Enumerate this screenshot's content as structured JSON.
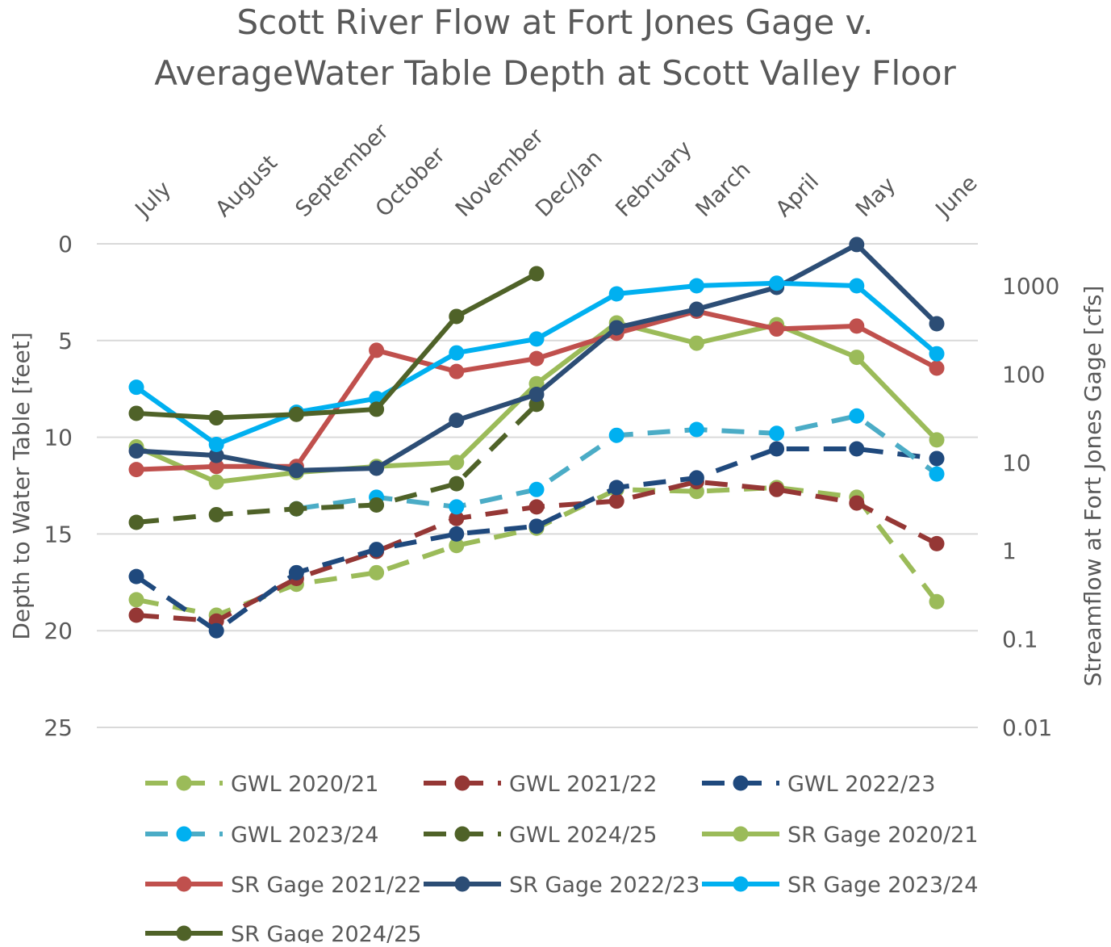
{
  "chart_data": {
    "type": "line",
    "title_lines": [
      "Scott River Flow at Fort Jones Gage v.",
      "AverageWater Table Depth at Scott Valley Floor"
    ],
    "categories": [
      "July",
      "August",
      "September",
      "October",
      "November",
      "Dec/Jan",
      "February",
      "March",
      "April",
      "May",
      "June"
    ],
    "ylabel": "Depth to Water Table [feet]",
    "y2label": "Streamflow at Fort Jones Gage [cfs]",
    "ylim": [
      0,
      25
    ],
    "yticks": [
      "0",
      "5",
      "10",
      "15",
      "20",
      "25"
    ],
    "y2lim": [
      0.01,
      3000
    ],
    "y2scale": "log",
    "y2ticks": [
      "1000",
      "100",
      "10",
      "1",
      "0.1",
      "0.01"
    ],
    "grid": true,
    "legend_position": "bottom",
    "series": [
      {
        "name": "GWL 2020/21",
        "axis": "left",
        "dashed": true,
        "color": "#9BBB59",
        "marker": "#9BBB59",
        "values": [
          18.4,
          19.2,
          17.6,
          17.0,
          15.6,
          14.7,
          12.7,
          12.8,
          12.6,
          13.1,
          18.5
        ]
      },
      {
        "name": "GWL 2021/22",
        "axis": "left",
        "dashed": true,
        "color": "#953735",
        "marker": "#953735",
        "values": [
          19.2,
          19.5,
          17.3,
          15.9,
          14.2,
          13.6,
          13.3,
          12.3,
          12.7,
          13.4,
          15.5
        ]
      },
      {
        "name": "GWL 2022/23",
        "axis": "left",
        "dashed": true,
        "color": "#1F497D",
        "marker": "#1F497D",
        "values": [
          17.2,
          20.0,
          17.0,
          15.8,
          15.0,
          14.6,
          12.6,
          12.1,
          10.6,
          10.6,
          11.1
        ]
      },
      {
        "name": "GWL 2023/24",
        "axis": "left",
        "dashed": true,
        "color": "#4BACC6",
        "marker": "#00B0F0",
        "values": [
          null,
          null,
          13.7,
          13.1,
          13.6,
          12.7,
          9.9,
          9.6,
          9.8,
          8.9,
          11.9
        ]
      },
      {
        "name": "GWL 2024/25",
        "axis": "left",
        "dashed": true,
        "color": "#4F6228",
        "marker": "#4F6228",
        "values": [
          14.4,
          14.0,
          13.7,
          13.5,
          12.4,
          8.3,
          null,
          null,
          null,
          null,
          null
        ]
      },
      {
        "name": "SR Gage 2020/21",
        "axis": "right",
        "dashed": false,
        "color": "#9BBB59",
        "marker": "#9BBB59",
        "values": [
          15,
          6,
          7.7,
          9,
          10,
          78,
          380,
          224,
          363,
          155,
          18
        ]
      },
      {
        "name": "SR Gage 2021/22",
        "axis": "right",
        "dashed": false,
        "color": "#C0504D",
        "marker": "#C0504D",
        "values": [
          8.3,
          9,
          9,
          186,
          107,
          150,
          290,
          515,
          324,
          350,
          117
        ]
      },
      {
        "name": "SR Gage 2022/23",
        "axis": "right",
        "dashed": false,
        "color": "#2C4D75",
        "marker": "#2C4D75",
        "values": [
          13.5,
          12,
          8.1,
          8.6,
          30,
          59,
          335,
          543,
          960,
          2930,
          372
        ]
      },
      {
        "name": "SR Gage 2023/24",
        "axis": "right",
        "dashed": false,
        "color": "#00B0F0",
        "marker": "#00B0F0",
        "values": [
          71,
          16,
          37,
          53,
          174,
          250,
          810,
          1000,
          1070,
          1000,
          170
        ]
      },
      {
        "name": "SR Gage 2024/25",
        "axis": "right",
        "dashed": false,
        "color": "#4F6228",
        "marker": "#4F6228",
        "values": [
          36,
          32,
          35,
          40,
          450,
          1370,
          null,
          null,
          null,
          null,
          null
        ]
      }
    ]
  }
}
